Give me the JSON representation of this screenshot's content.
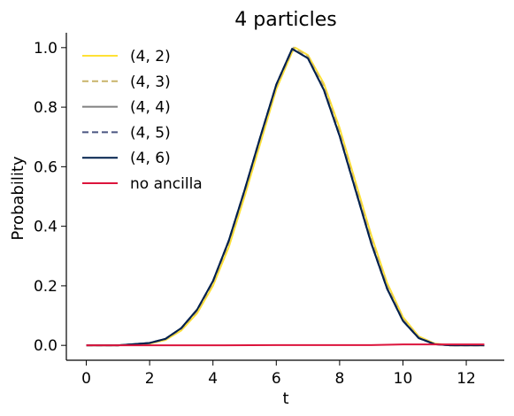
{
  "chart_data": {
    "type": "line",
    "title": "4 particles",
    "xlabel": "t",
    "ylabel": "Probability",
    "xlim": [
      -0.63,
      13.2
    ],
    "ylim": [
      -0.05,
      1.05
    ],
    "xticks": [
      0,
      2,
      4,
      6,
      8,
      10,
      12
    ],
    "yticks": [
      0.0,
      0.2,
      0.4,
      0.6,
      0.8,
      1.0
    ],
    "xtick_labels": [
      "0",
      "2",
      "4",
      "6",
      "8",
      "10",
      "12"
    ],
    "ytick_labels": [
      "0.0",
      "0.2",
      "0.4",
      "0.6",
      "0.8",
      "1.0"
    ],
    "legend_position": "top-left",
    "grid": false,
    "series": [
      {
        "name": "(4, 2)",
        "color": "#ffe135",
        "dash": "solid",
        "x": [
          0,
          1,
          2,
          2.5,
          3,
          3.5,
          4,
          4.5,
          5,
          5.5,
          6,
          6.5,
          6.6,
          7,
          7.5,
          8,
          8.5,
          9,
          9.5,
          10,
          10.5,
          11,
          11.5,
          12,
          12.57
        ],
        "y": [
          0.0,
          0.0,
          0.006,
          0.018,
          0.05,
          0.108,
          0.2,
          0.33,
          0.5,
          0.68,
          0.86,
          0.985,
          1.0,
          0.975,
          0.88,
          0.73,
          0.55,
          0.37,
          0.21,
          0.095,
          0.03,
          0.006,
          0.0,
          0.0,
          0.0
        ]
      },
      {
        "name": "(4, 3)",
        "color": "#c9b46a",
        "dash": "dashed",
        "x": [
          0,
          1,
          2,
          2.5,
          3,
          3.5,
          4,
          4.5,
          5,
          5.5,
          6,
          6.5,
          6.55,
          7,
          7.5,
          8,
          8.5,
          9,
          9.5,
          10,
          10.5,
          11,
          11.5,
          12,
          12.57
        ],
        "y": [
          0.0,
          0.0,
          0.007,
          0.02,
          0.055,
          0.115,
          0.21,
          0.345,
          0.515,
          0.695,
          0.87,
          0.99,
          1.0,
          0.97,
          0.87,
          0.715,
          0.535,
          0.355,
          0.2,
          0.088,
          0.027,
          0.005,
          0.0,
          0.0,
          0.0
        ]
      },
      {
        "name": "(4, 4)",
        "color": "#808080",
        "dash": "solid",
        "x": [
          0,
          1,
          2,
          2.5,
          3,
          3.5,
          4,
          4.5,
          5,
          5.5,
          6,
          6.5,
          7,
          7.5,
          8,
          8.5,
          9,
          9.5,
          10,
          10.5,
          11,
          11.5,
          12,
          12.57
        ],
        "y": [
          0.0,
          0.0,
          0.008,
          0.022,
          0.058,
          0.12,
          0.215,
          0.35,
          0.52,
          0.7,
          0.875,
          0.995,
          0.965,
          0.86,
          0.705,
          0.525,
          0.345,
          0.192,
          0.083,
          0.025,
          0.004,
          0.0,
          0.0,
          0.0
        ]
      },
      {
        "name": "(4, 5)",
        "color": "#4a5580",
        "dash": "dashed",
        "x": [
          0,
          1,
          2,
          2.5,
          3,
          3.5,
          4,
          4.5,
          5,
          5.5,
          6,
          6.5,
          7,
          7.5,
          8,
          8.5,
          9,
          9.5,
          10,
          10.5,
          11,
          11.5,
          12,
          12.57
        ],
        "y": [
          0.0,
          0.0,
          0.008,
          0.022,
          0.058,
          0.12,
          0.216,
          0.352,
          0.522,
          0.702,
          0.876,
          0.996,
          0.964,
          0.858,
          0.703,
          0.522,
          0.342,
          0.19,
          0.082,
          0.024,
          0.004,
          0.0,
          0.0,
          0.0
        ]
      },
      {
        "name": "(4, 6)",
        "color": "#00204c",
        "dash": "solid",
        "x": [
          0,
          1,
          2,
          2.5,
          3,
          3.5,
          4,
          4.5,
          5,
          5.5,
          6,
          6.5,
          7,
          7.5,
          8,
          8.5,
          9,
          9.5,
          10,
          10.5,
          11,
          11.5,
          12,
          12.57
        ],
        "y": [
          0.0,
          0.0,
          0.008,
          0.022,
          0.058,
          0.12,
          0.216,
          0.352,
          0.522,
          0.702,
          0.876,
          0.996,
          0.964,
          0.858,
          0.703,
          0.522,
          0.342,
          0.19,
          0.082,
          0.024,
          0.004,
          0.0,
          0.0,
          0.0
        ]
      },
      {
        "name": "no ancilla",
        "color": "#dc143c",
        "dash": "solid",
        "x": [
          0,
          2,
          4,
          6,
          8,
          9,
          10,
          11,
          12,
          12.57
        ],
        "y": [
          0.0,
          0.0,
          0.0,
          0.001,
          0.001,
          0.001,
          0.003,
          0.003,
          0.003,
          0.003
        ]
      }
    ]
  }
}
